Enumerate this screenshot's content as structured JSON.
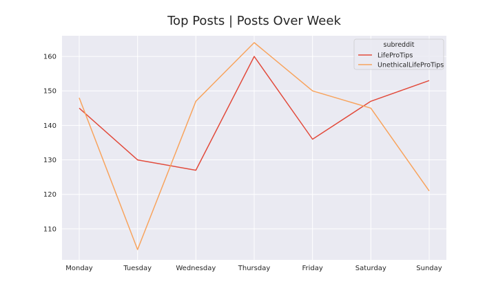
{
  "chart_data": {
    "type": "line",
    "title": "Top Posts | Posts Over Week",
    "xlabel": "",
    "ylabel": "",
    "categories": [
      "Monday",
      "Tuesday",
      "Wednesday",
      "Thursday",
      "Friday",
      "Saturday",
      "Sunday"
    ],
    "ylim": [
      101,
      166
    ],
    "yticks": [
      110,
      120,
      130,
      140,
      150,
      160
    ],
    "grid": true,
    "legend": {
      "title": "subreddit",
      "placement": "top-right"
    },
    "series": [
      {
        "name": "LifeProTips",
        "color": "#e24a3b",
        "values": [
          145,
          130,
          127,
          160,
          136,
          147,
          153
        ]
      },
      {
        "name": "UnethicalLifeProTips",
        "color": "#f8a35c",
        "values": [
          148,
          104,
          147,
          164,
          150,
          145,
          121
        ]
      }
    ]
  }
}
